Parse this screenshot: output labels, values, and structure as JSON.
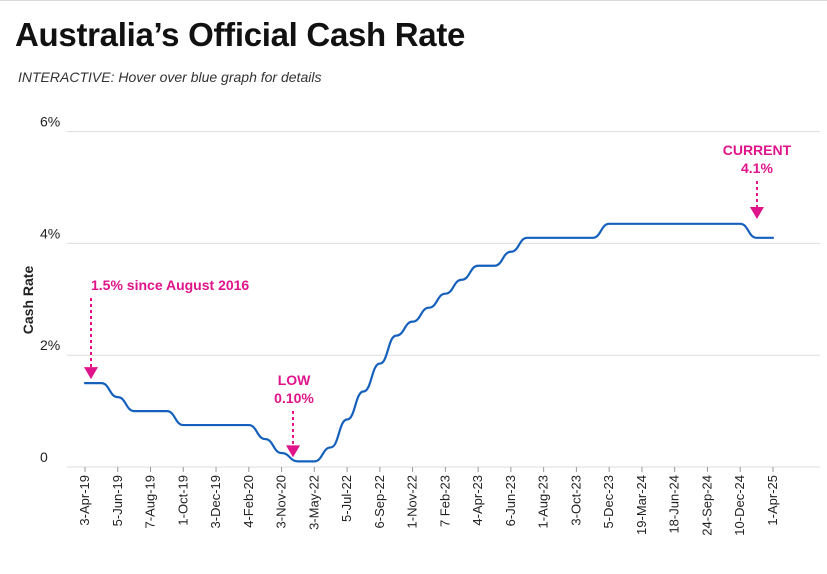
{
  "page": {
    "title": "Australia’s Official Cash Rate",
    "subtitle": "INTERACTIVE: Hover over blue graph for details"
  },
  "colors": {
    "line": "#1560bd",
    "annotation": "#e0148a",
    "grid": "#dddddd",
    "text": "#222222"
  },
  "chart_data": {
    "type": "line",
    "ylabel": "Cash Rate",
    "ylim": [
      0,
      6
    ],
    "y_ticks": [
      {
        "value": 0,
        "label": "0"
      },
      {
        "value": 2,
        "label": "2%"
      },
      {
        "value": 4,
        "label": "4%"
      },
      {
        "value": 6,
        "label": "6%"
      }
    ],
    "x_tick_labels": [
      "3-Apr-19",
      "5-Jun-19",
      "7-Aug-19",
      "1-Oct-19",
      "3-Dec-19",
      "4-Feb-20",
      "3-Nov-20",
      "3-May-22",
      "5-Jul-22",
      "6-Sep-22",
      "1-Nov-22",
      "7 Feb-23",
      "4-Apr-23",
      "6-Jun-23",
      "1-Aug-23",
      "3-Oct-23",
      "5-Dec-23",
      "19-Mar-24",
      "18-Jun-24",
      "24-Sep-24",
      "10-Dec-24",
      "1-Apr-25"
    ],
    "grid": true,
    "series": [
      {
        "x": [
          0,
          0.5,
          1,
          1.5,
          2,
          2.5,
          3,
          3.5,
          4,
          4.5,
          5,
          5.5,
          6,
          6.5,
          7,
          7.5,
          8,
          8.5,
          9,
          9.5,
          10,
          10.5,
          11,
          11.5,
          12,
          12.5,
          13,
          13.5,
          14,
          14.5,
          15,
          15.5,
          16,
          16.5,
          17,
          17.5,
          18,
          18.5,
          19,
          19.5,
          20,
          20.5,
          21
        ],
        "values": [
          1.5,
          1.5,
          1.25,
          1.0,
          1.0,
          1.0,
          0.75,
          0.75,
          0.75,
          0.75,
          0.75,
          0.5,
          0.25,
          0.1,
          0.1,
          0.35,
          0.85,
          1.35,
          1.85,
          2.35,
          2.6,
          2.85,
          3.1,
          3.35,
          3.6,
          3.6,
          3.85,
          4.1,
          4.1,
          4.1,
          4.1,
          4.1,
          4.35,
          4.35,
          4.35,
          4.35,
          4.35,
          4.35,
          4.35,
          4.35,
          4.35,
          4.1,
          4.1
        ]
      }
    ],
    "annotations": [
      {
        "text": "1.5% since August 2016",
        "x": 0.4,
        "y": 1.5
      },
      {
        "line1": "LOW",
        "line2": "0.10%",
        "x": 6.35,
        "y": 0.1
      },
      {
        "line1": "CURRENT",
        "line2": "4.1%",
        "x": 21,
        "y": 4.1
      }
    ]
  }
}
